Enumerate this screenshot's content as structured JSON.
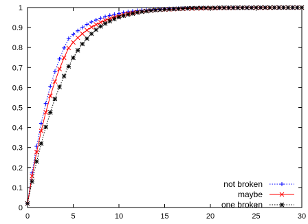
{
  "chart_data": {
    "type": "line",
    "title": "",
    "xlabel": "",
    "ylabel": "",
    "xlim": [
      0,
      30
    ],
    "ylim": [
      0,
      1
    ],
    "x_ticks": [
      0,
      5,
      10,
      15,
      20,
      25,
      30
    ],
    "x_tick_labels": [
      "0",
      "5",
      "10",
      "15",
      "20",
      "25",
      "30"
    ],
    "y_ticks": [
      0,
      0.1,
      0.2,
      0.3,
      0.4,
      0.5,
      0.6,
      0.7,
      0.8,
      0.9,
      1
    ],
    "y_tick_labels": [
      "0",
      "0.1",
      "0.2",
      "0.3",
      "0.4",
      "0.5",
      "0.6",
      "0.7",
      "0.8",
      "0.9",
      "1"
    ],
    "grid": false,
    "legend_position": "bottom-right",
    "x": [
      0,
      0.5,
      1,
      1.5,
      2,
      2.5,
      3,
      3.5,
      4,
      4.5,
      5,
      5.5,
      6,
      6.5,
      7,
      7.5,
      8,
      8.5,
      9,
      9.5,
      10,
      10.5,
      11,
      11.5,
      12,
      12.5,
      13,
      13.5,
      14,
      14.5,
      15,
      15.5,
      16,
      16.5,
      17,
      17.5,
      18,
      18.5,
      19,
      19.5,
      20,
      20.5,
      21,
      21.5,
      22,
      22.5,
      23,
      23.5,
      24,
      24.5,
      25,
      25.5,
      26,
      26.5,
      27,
      27.5,
      28,
      28.5,
      29,
      29.5,
      30
    ],
    "series": [
      {
        "name": "not broken",
        "color": "#0000ff",
        "marker": "plus",
        "dash": "dotted",
        "values": [
          0.02,
          0.173,
          0.306,
          0.421,
          0.52,
          0.606,
          0.68,
          0.743,
          0.798,
          0.845,
          0.866,
          0.884,
          0.901,
          0.916,
          0.928,
          0.938,
          0.947,
          0.954,
          0.961,
          0.966,
          0.971,
          0.975,
          0.979,
          0.982,
          0.985,
          0.987,
          0.988,
          0.989,
          0.991,
          0.992,
          0.993,
          0.994,
          0.994,
          0.995,
          0.996,
          0.996,
          0.997,
          0.997,
          0.997,
          0.998,
          0.998,
          0.998,
          0.998,
          0.999,
          0.999,
          0.999,
          0.999,
          0.999,
          0.999,
          0.999,
          0.999,
          0.999,
          1.0,
          1.0,
          1.0,
          1.0,
          1.0,
          1.0,
          1.0,
          1.0,
          1.0
        ]
      },
      {
        "name": "maybe",
        "color": "#ff0000",
        "marker": "cross",
        "dash": "solid",
        "values": [
          0.02,
          0.157,
          0.277,
          0.383,
          0.476,
          0.558,
          0.63,
          0.693,
          0.749,
          0.798,
          0.826,
          0.849,
          0.869,
          0.887,
          0.902,
          0.915,
          0.926,
          0.936,
          0.945,
          0.952,
          0.959,
          0.965,
          0.97,
          0.974,
          0.977,
          0.98,
          0.983,
          0.985,
          0.987,
          0.989,
          0.99,
          0.991,
          0.992,
          0.993,
          0.994,
          0.995,
          0.995,
          0.996,
          0.996,
          0.997,
          0.997,
          0.997,
          0.998,
          0.998,
          0.998,
          0.998,
          0.999,
          0.999,
          0.999,
          0.999,
          0.999,
          0.999,
          0.999,
          0.999,
          1.0,
          1.0,
          1.0,
          1.0,
          1.0,
          1.0,
          1.0
        ]
      },
      {
        "name": "one broken",
        "color": "#000000",
        "marker": "star",
        "dash": "dotted",
        "values": [
          0.02,
          0.13,
          0.23,
          0.32,
          0.402,
          0.476,
          0.543,
          0.603,
          0.657,
          0.706,
          0.749,
          0.786,
          0.818,
          0.845,
          0.869,
          0.889,
          0.906,
          0.92,
          0.932,
          0.943,
          0.952,
          0.959,
          0.965,
          0.97,
          0.975,
          0.979,
          0.982,
          0.985,
          0.987,
          0.989,
          0.991,
          0.992,
          0.993,
          0.994,
          0.995,
          0.996,
          0.997,
          0.997,
          0.998,
          0.998,
          0.998,
          0.998,
          0.999,
          0.999,
          0.999,
          0.999,
          0.999,
          0.999,
          0.999,
          0.999,
          1.0,
          1.0,
          1.0,
          1.0,
          1.0,
          1.0,
          1.0,
          1.0,
          1.0,
          1.0,
          1.0
        ]
      }
    ]
  }
}
